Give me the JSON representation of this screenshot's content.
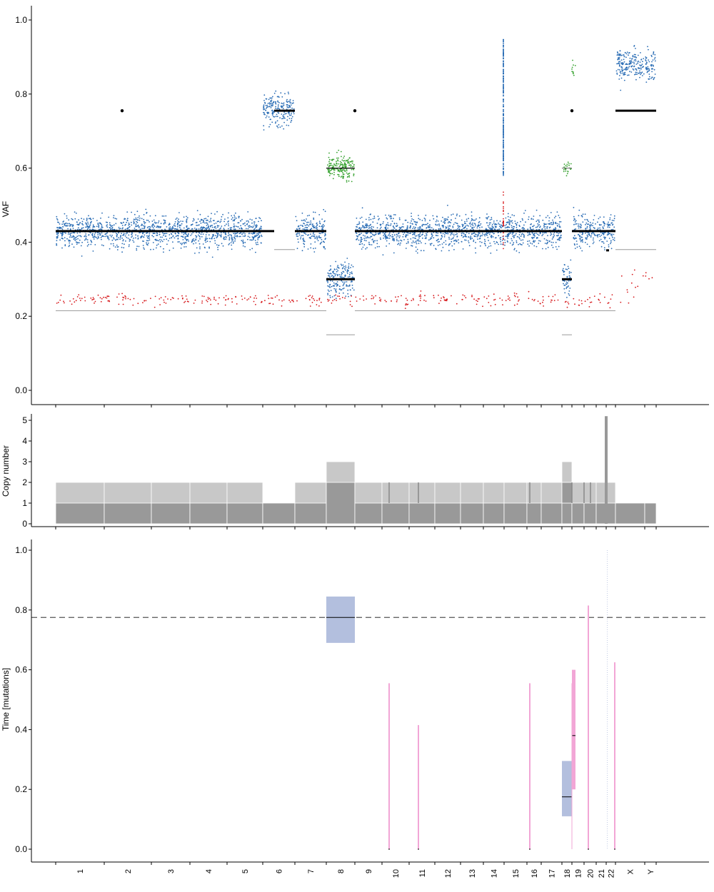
{
  "chart_data": [
    {
      "panel": "vaf",
      "type": "scatter",
      "title": "",
      "ylabel": "VAF",
      "ylim": [
        0,
        1
      ],
      "yticks": [
        "0.0",
        "0.2",
        "0.4",
        "0.6",
        "0.8",
        "1.0"
      ],
      "colors": {
        "clonal": "#2a6db5",
        "subclonal": "#d7191c",
        "gain": "#33a02c",
        "segment": "#000000",
        "expected": "#999999"
      },
      "series": [
        {
          "name": "",
          "kind": "clonal",
          "values": "dense point cloud, y≈0.43 in diploid chromosomes"
        },
        {
          "name": "",
          "kind": "subclonal",
          "values": "sparse points y 0.21–0.30"
        },
        {
          "name": "",
          "kind": "gain",
          "values": "chr8 y≈0.6, chr18–19 y≈0.6"
        }
      ],
      "segments": [
        {
          "chr": "1",
          "vaf": 0.43
        },
        {
          "chr": "2",
          "vaf": 0.43
        },
        {
          "chr": "3",
          "vaf": 0.43
        },
        {
          "chr": "4",
          "vaf": 0.43
        },
        {
          "chr": "5",
          "vaf": 0.43
        },
        {
          "chr": "6",
          "vaf": 0.755
        },
        {
          "chr": "7",
          "vaf": 0.43
        },
        {
          "chr": "8",
          "vaf": 0.3
        },
        {
          "chr": "8",
          "vaf": 0.6
        },
        {
          "chr": "9-17",
          "vaf": 0.43
        },
        {
          "chr": "18",
          "vaf": 0.3
        },
        {
          "chr": "19-22",
          "vaf": 0.43
        },
        {
          "chr": "X-Y",
          "vaf": 0.755
        }
      ]
    },
    {
      "panel": "copy-number",
      "type": "bar",
      "ylabel": "Copy number",
      "ylim": [
        0,
        5
      ],
      "yticks": [
        "0",
        "1",
        "2",
        "3",
        "4",
        "5"
      ],
      "colors": {
        "major": "#c8c8c8",
        "minor": "#999999"
      },
      "minor_cn": [
        1,
        1,
        1,
        1,
        1,
        1,
        1,
        2,
        1,
        1,
        1,
        1,
        1,
        1,
        1,
        1,
        1,
        1,
        1,
        1,
        1,
        1,
        1,
        1
      ],
      "total_cn": [
        2,
        2,
        2,
        2,
        2,
        1,
        2,
        3,
        2,
        2,
        2,
        2,
        2,
        2,
        2,
        2,
        2,
        3,
        2,
        2,
        5,
        2,
        1,
        1
      ]
    },
    {
      "panel": "timing",
      "type": "bar",
      "ylabel": "Time [mutations]",
      "ylim": [
        0,
        1
      ],
      "yticks": [
        "0.0",
        "0.2",
        "0.4",
        "0.6",
        "0.8",
        "1.0"
      ],
      "reference_line": 0.775,
      "colors": {
        "clonal": "#b3bfde",
        "subclonal": "#f2a6d6",
        "reference": "#555555"
      },
      "events": [
        {
          "chr": "8",
          "time": 0.775,
          "lo": 0.69,
          "hi": 0.845,
          "kind": "clonal"
        },
        {
          "chr": "18",
          "time": 0.175,
          "lo": 0.11,
          "hi": 0.295,
          "kind": "clonal"
        },
        {
          "chr": "19",
          "time": 0.38,
          "lo": 0.2,
          "hi": 0.6,
          "kind": "subclonal"
        },
        {
          "chr": "10",
          "time": 0.0,
          "lo": 0.0,
          "hi": 0.555,
          "kind": "subclonal"
        },
        {
          "chr": "11",
          "time": 0.0,
          "lo": 0.0,
          "hi": 0.415,
          "kind": "subclonal"
        },
        {
          "chr": "16",
          "time": 0.0,
          "lo": 0.0,
          "hi": 0.555,
          "kind": "subclonal"
        },
        {
          "chr": "20",
          "time": 0.0,
          "lo": 0.0,
          "hi": 0.815,
          "kind": "subclonal"
        },
        {
          "chr": "22",
          "time": 0.0,
          "lo": 0.0,
          "hi": 0.625,
          "kind": "subclonal"
        }
      ]
    }
  ],
  "chromosomes": [
    "1",
    "2",
    "3",
    "4",
    "5",
    "6",
    "7",
    "8",
    "9",
    "10",
    "11",
    "12",
    "13",
    "14",
    "15",
    "16",
    "17",
    "18",
    "19",
    "20",
    "21",
    "22",
    "X",
    "Y"
  ]
}
